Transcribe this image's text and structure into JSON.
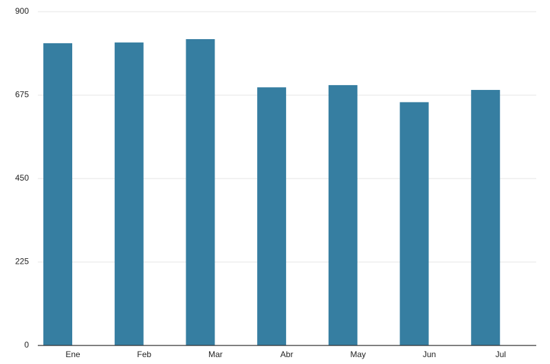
{
  "chart_data": {
    "type": "bar",
    "categories": [
      "Ene",
      "Feb",
      "Mar",
      "Abr",
      "May",
      "Jun",
      "Jul"
    ],
    "values": [
      815,
      817,
      826,
      696,
      702,
      656,
      689
    ],
    "color": "#367ea1",
    "ylim": [
      0,
      900
    ],
    "yticks": [
      0,
      225,
      450,
      675,
      900
    ],
    "grid": true
  }
}
